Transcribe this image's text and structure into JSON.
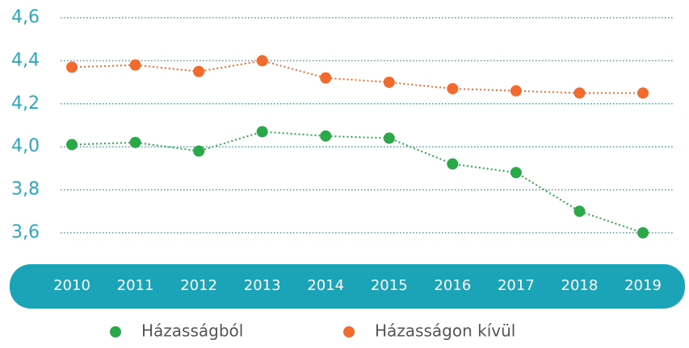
{
  "chart_data": {
    "type": "line",
    "categories": [
      "2010",
      "2011",
      "2012",
      "2013",
      "2014",
      "2015",
      "2016",
      "2017",
      "2018",
      "2019"
    ],
    "series": [
      {
        "name": "Házasságból",
        "color": "#2ca84a",
        "values": [
          4.01,
          4.02,
          3.98,
          4.07,
          4.05,
          4.04,
          3.92,
          3.88,
          3.7,
          3.6
        ]
      },
      {
        "name": "Házasságon kívül",
        "color": "#f26a2e",
        "values": [
          4.37,
          4.38,
          4.35,
          4.4,
          4.32,
          4.3,
          4.27,
          4.26,
          4.25,
          4.25
        ]
      }
    ],
    "ylim": [
      3.6,
      4.6
    ],
    "yticks": [
      {
        "value": 3.6,
        "label": "3,6"
      },
      {
        "value": 3.8,
        "label": "3,8"
      },
      {
        "value": 4.0,
        "label": "4,0"
      },
      {
        "value": 4.2,
        "label": "4,2"
      },
      {
        "value": 4.4,
        "label": "4,4"
      },
      {
        "value": 4.6,
        "label": "4,6"
      }
    ],
    "grid": true
  }
}
